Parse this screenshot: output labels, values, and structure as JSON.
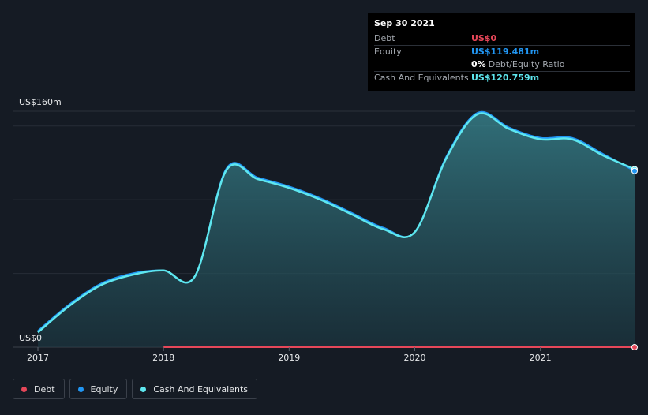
{
  "chart_data": {
    "type": "area",
    "title": "",
    "y_axis": {
      "top_label": "US$160m",
      "bottom_label": "US$0",
      "ylim": [
        0,
        160
      ]
    },
    "x_ticks": [
      "2017",
      "2018",
      "2019",
      "2020",
      "2021"
    ],
    "x_range": [
      2017.0,
      2021.75
    ],
    "series": [
      {
        "name": "Cash And Equivalents",
        "color": "#5ee7ef",
        "points": [
          [
            2017.0,
            10
          ],
          [
            2017.25,
            28
          ],
          [
            2017.5,
            42
          ],
          [
            2017.75,
            49
          ],
          [
            2018.0,
            52
          ],
          [
            2018.25,
            48
          ],
          [
            2018.5,
            120
          ],
          [
            2018.75,
            114
          ],
          [
            2019.0,
            108
          ],
          [
            2019.25,
            100
          ],
          [
            2019.5,
            90
          ],
          [
            2019.75,
            80
          ],
          [
            2020.0,
            78
          ],
          [
            2020.25,
            128
          ],
          [
            2020.5,
            158
          ],
          [
            2020.75,
            148
          ],
          [
            2021.0,
            141
          ],
          [
            2021.25,
            141
          ],
          [
            2021.5,
            130
          ],
          [
            2021.75,
            120.759
          ]
        ]
      },
      {
        "name": "Equity",
        "color": "#2196f3",
        "points": [
          [
            2017.0,
            11
          ],
          [
            2017.25,
            29
          ],
          [
            2017.5,
            43
          ],
          [
            2017.75,
            50
          ],
          [
            2018.0,
            52
          ],
          [
            2018.25,
            48
          ],
          [
            2018.5,
            121
          ],
          [
            2018.75,
            115
          ],
          [
            2019.0,
            109
          ],
          [
            2019.25,
            101
          ],
          [
            2019.5,
            91
          ],
          [
            2019.75,
            81
          ],
          [
            2020.0,
            78
          ],
          [
            2020.25,
            129
          ],
          [
            2020.5,
            159
          ],
          [
            2020.75,
            149
          ],
          [
            2021.0,
            142
          ],
          [
            2021.25,
            142
          ],
          [
            2021.5,
            131
          ],
          [
            2021.75,
            119.481
          ]
        ]
      },
      {
        "name": "Debt",
        "color": "#e64759",
        "points": [
          [
            2018.0,
            0
          ],
          [
            2018.5,
            0
          ],
          [
            2019.0,
            0
          ],
          [
            2019.5,
            0
          ],
          [
            2020.0,
            0
          ],
          [
            2020.5,
            0
          ],
          [
            2021.0,
            0
          ],
          [
            2021.5,
            0
          ],
          [
            2021.75,
            0
          ]
        ]
      }
    ],
    "tooltip": {
      "date": "Sep 30 2021",
      "debt_label": "Debt",
      "debt_value": "US$0",
      "equity_label": "Equity",
      "equity_value": "US$119.481m",
      "ratio_value": "0%",
      "ratio_label": "Debt/Equity Ratio",
      "cash_label": "Cash And Equivalents",
      "cash_value": "US$120.759m"
    },
    "legend": [
      {
        "label": "Debt",
        "color": "#e64759"
      },
      {
        "label": "Equity",
        "color": "#2196f3"
      },
      {
        "label": "Cash And Equivalents",
        "color": "#5ee7ef"
      }
    ]
  }
}
